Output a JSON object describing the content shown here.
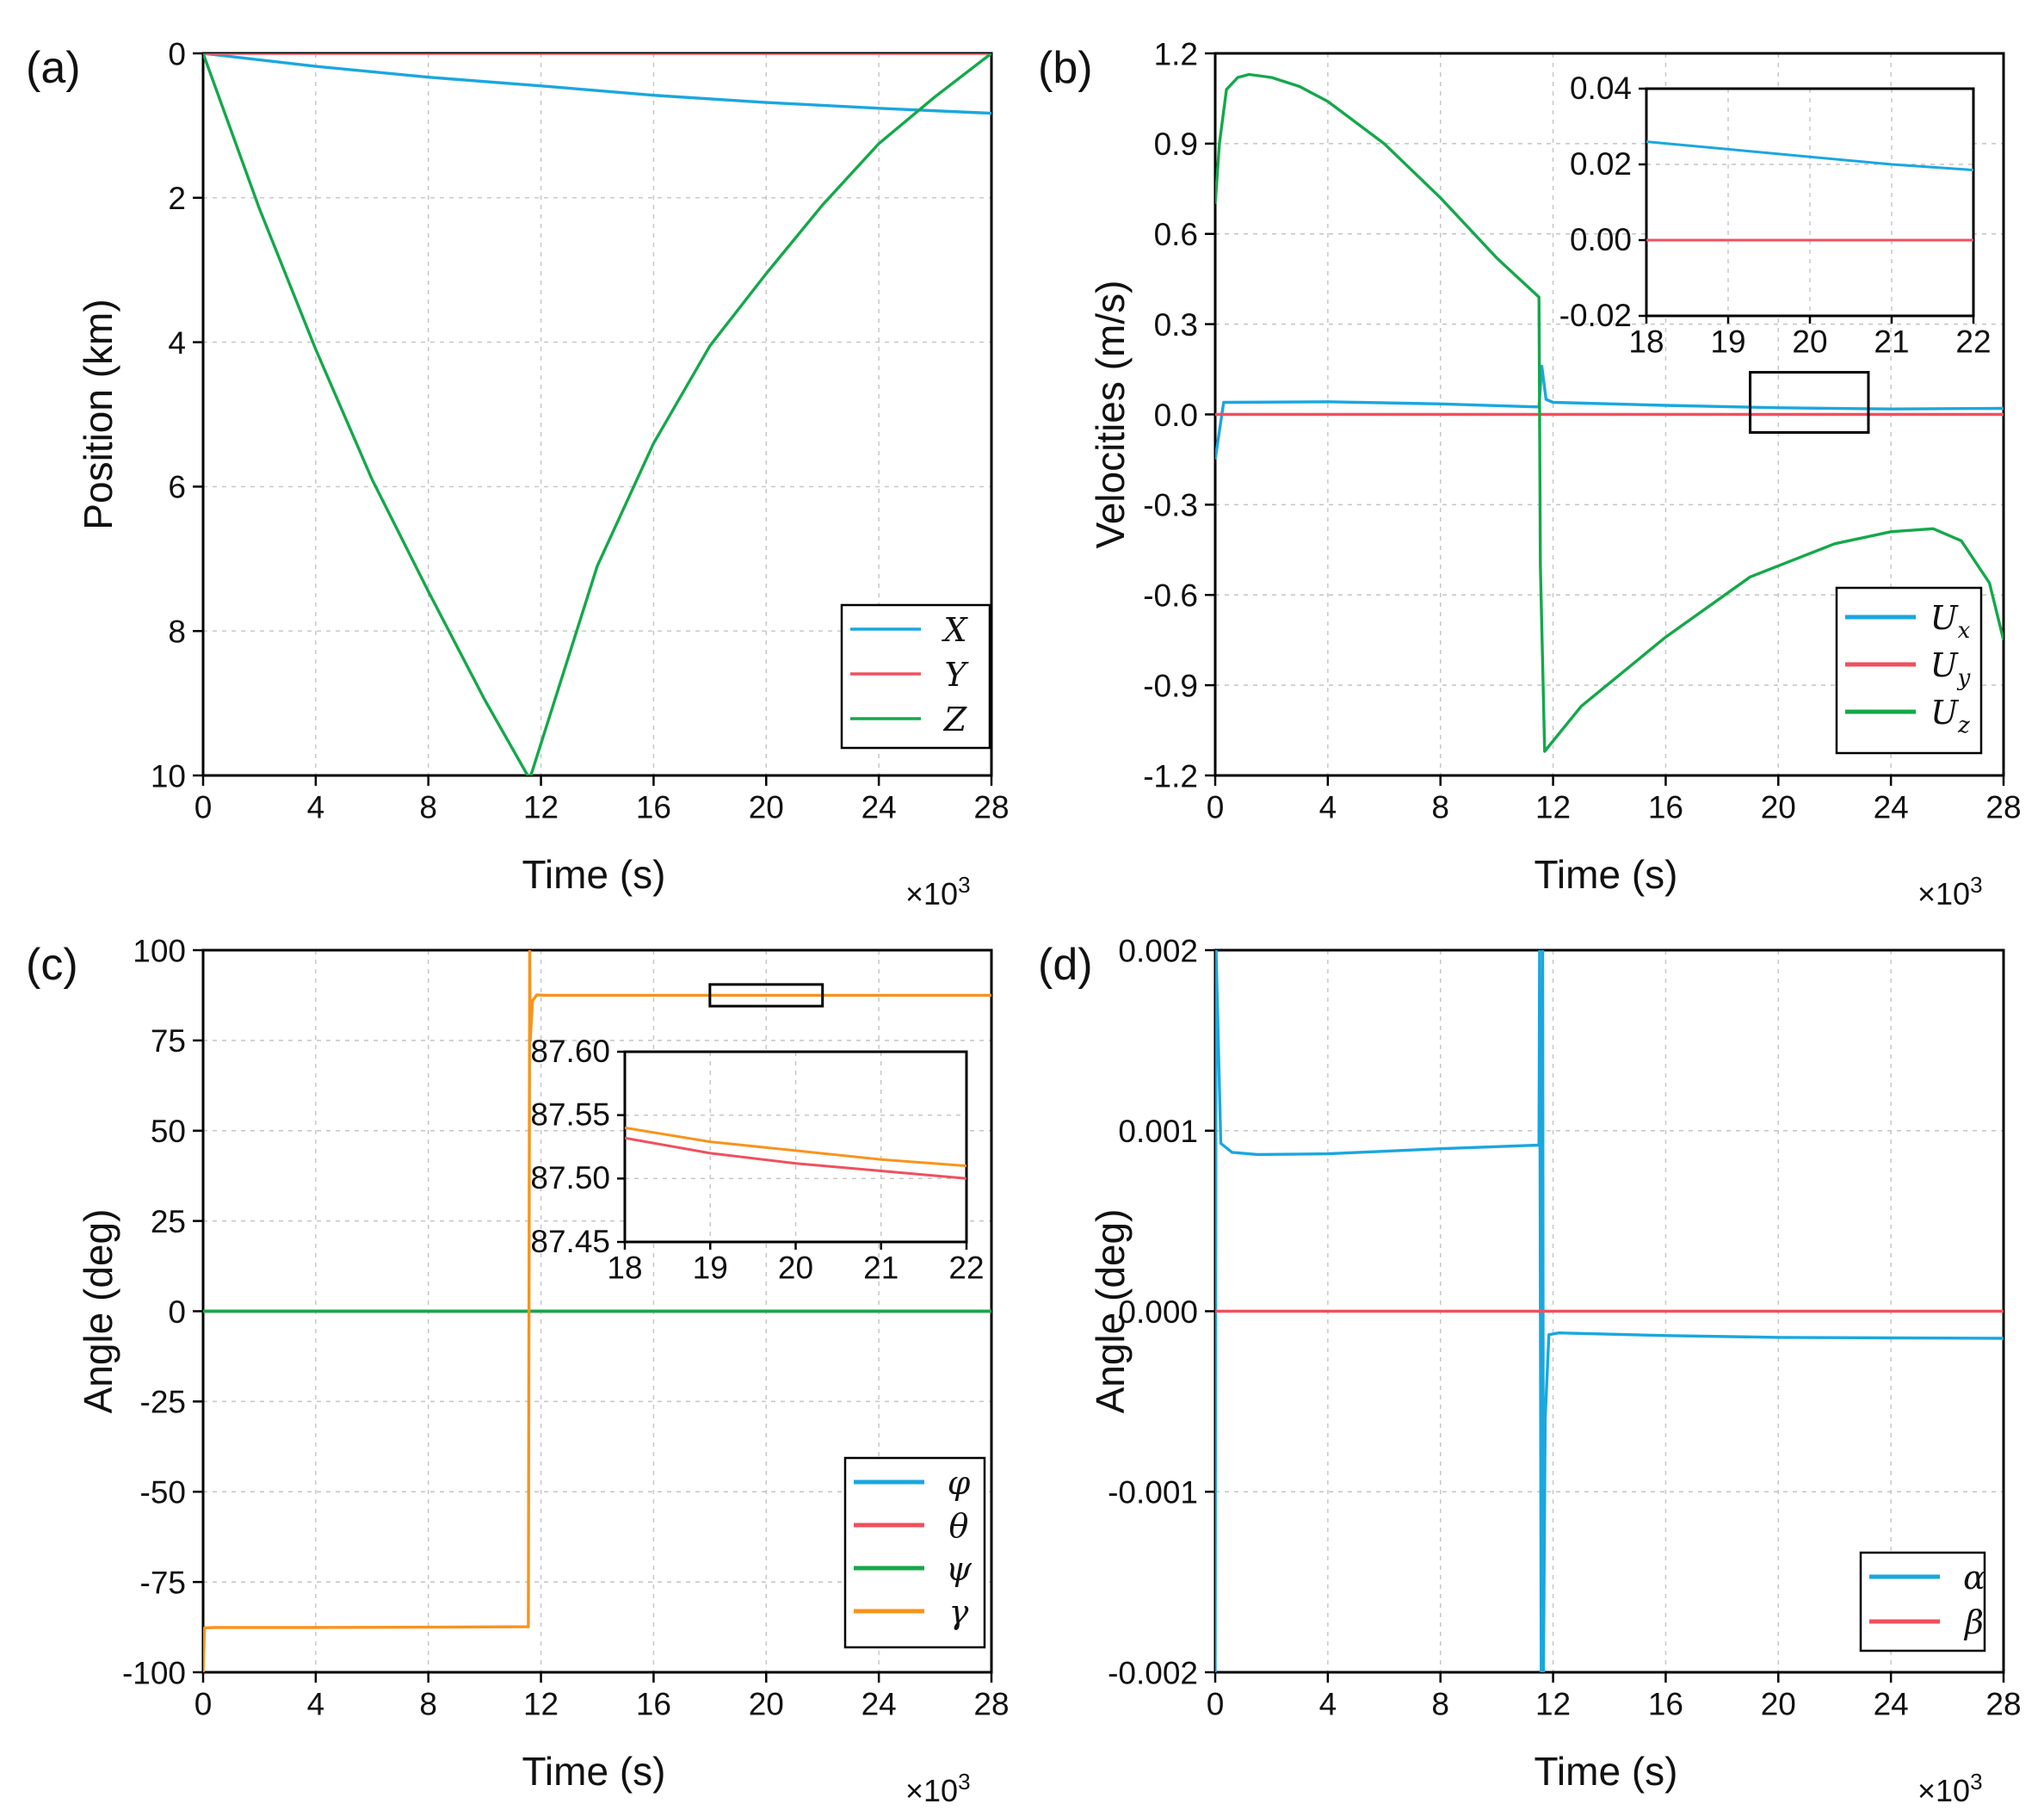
{
  "chart_data": [
    {
      "type": "line",
      "panel_label": "(a)",
      "xlabel": "Time (s)",
      "x_multiplier": "×10",
      "x_multiplier_exp": "3",
      "ylabel": "Position (km)",
      "xlim": [
        0,
        28
      ],
      "ylim": [
        0,
        10
      ],
      "y_inverted": true,
      "xticks": [
        "0",
        "4",
        "8",
        "12",
        "16",
        "20",
        "24",
        "28"
      ],
      "yticks": [
        "0",
        "2",
        "4",
        "6",
        "8",
        "10"
      ],
      "legend_position": "bottom-right",
      "series": [
        {
          "name": "X",
          "color": "#1aa7df",
          "x": [
            0,
            4,
            8,
            12,
            16,
            20,
            24,
            28
          ],
          "values": [
            0,
            0.18,
            0.33,
            0.45,
            0.58,
            0.68,
            0.76,
            0.83
          ]
        },
        {
          "name": "Y",
          "color": "#f0505e",
          "x": [
            0,
            28
          ],
          "values": [
            0,
            0
          ]
        },
        {
          "name": "Z",
          "color": "#14a84a",
          "x": [
            0,
            2,
            4,
            6,
            8,
            10,
            11.6,
            14,
            16,
            18,
            20,
            22,
            24,
            26,
            28
          ],
          "values": [
            0,
            2.15,
            4.1,
            5.9,
            7.45,
            8.95,
            10.05,
            7.1,
            5.4,
            4.05,
            3.05,
            2.1,
            1.25,
            0.6,
            0
          ]
        }
      ]
    },
    {
      "type": "line",
      "panel_label": "(b)",
      "xlabel": "Time (s)",
      "x_multiplier": "×10",
      "x_multiplier_exp": "3",
      "ylabel": "Velocities (m/s)",
      "xlim": [
        0,
        28
      ],
      "ylim": [
        -1.2,
        1.2
      ],
      "xticks": [
        "0",
        "4",
        "8",
        "12",
        "16",
        "20",
        "24",
        "28"
      ],
      "yticks": [
        "1.2",
        "0.9",
        "0.6",
        "0.3",
        "0.0",
        "-0.3",
        "-0.6",
        "-0.9",
        "-1.2"
      ],
      "legend_position": "bottom-right",
      "series": [
        {
          "name": "U",
          "sub": "x",
          "color": "#1aa7df",
          "x": [
            0,
            0.3,
            4,
            8,
            11.5,
            11.6,
            11.75,
            12,
            16,
            20,
            24,
            28
          ],
          "values": [
            -0.15,
            0.04,
            0.042,
            0.035,
            0.025,
            0.16,
            0.05,
            0.04,
            0.03,
            0.022,
            0.018,
            0.02
          ]
        },
        {
          "name": "U",
          "sub": "y",
          "color": "#f0505e",
          "x": [
            0,
            28
          ],
          "values": [
            0,
            0
          ]
        },
        {
          "name": "U",
          "sub": "z",
          "color": "#14a84a",
          "x": [
            0,
            0.15,
            0.4,
            0.8,
            1.2,
            2,
            3,
            4,
            6,
            8,
            10,
            11.5,
            11.55,
            11.7,
            13,
            16,
            19,
            22,
            24,
            25.5,
            26.5,
            27.5,
            28
          ],
          "values": [
            0.7,
            0.9,
            1.08,
            1.12,
            1.13,
            1.12,
            1.09,
            1.04,
            0.9,
            0.72,
            0.52,
            0.39,
            -0.5,
            -1.12,
            -0.97,
            -0.74,
            -0.54,
            -0.43,
            -0.39,
            -0.38,
            -0.42,
            -0.56,
            -0.75
          ]
        }
      ],
      "zoom_box": {
        "x": [
          19,
          23.2
        ],
        "y": [
          -0.06,
          0.14
        ]
      },
      "inset": {
        "xlim": [
          18,
          22
        ],
        "ylim": [
          -0.02,
          0.04
        ],
        "xticks": [
          "18",
          "19",
          "20",
          "21",
          "22"
        ],
        "yticks": [
          "0.04",
          "0.02",
          "0.00",
          "-0.02"
        ],
        "series": [
          {
            "name": "U_x",
            "color": "#1aa7df",
            "x": [
              18,
              19,
              20,
              21,
              22
            ],
            "values": [
              0.026,
              0.024,
              0.022,
              0.02,
              0.0185
            ]
          },
          {
            "name": "U_y",
            "color": "#f0505e",
            "x": [
              18,
              22
            ],
            "values": [
              0,
              0
            ]
          }
        ]
      }
    },
    {
      "type": "line",
      "panel_label": "(c)",
      "xlabel": "Time (s)",
      "x_multiplier": "×10",
      "x_multiplier_exp": "3",
      "ylabel": "Angle (deg)",
      "xlim": [
        0,
        28
      ],
      "ylim": [
        -100,
        100
      ],
      "xticks": [
        "0",
        "4",
        "8",
        "12",
        "16",
        "20",
        "24",
        "28"
      ],
      "yticks": [
        "100",
        "75",
        "50",
        "25",
        "0",
        "-25",
        "-50",
        "-75",
        "-100"
      ],
      "legend_position": "bottom-right",
      "series": [
        {
          "name": "φ",
          "color": "#1aa7df",
          "x": [
            0,
            28
          ],
          "values": [
            0,
            0
          ]
        },
        {
          "name": "θ",
          "color": "#f0505e",
          "x": [
            0,
            28
          ],
          "values": [
            0,
            0
          ]
        },
        {
          "name": "ψ",
          "color": "#14a84a",
          "x": [
            0,
            28
          ],
          "values": [
            0,
            0
          ]
        },
        {
          "name": "γ",
          "color": "#f7941d",
          "x": [
            0,
            0.05,
            0.4,
            4,
            8,
            11.55,
            11.6,
            11.62,
            11.7,
            11.85,
            12.2,
            28
          ],
          "values": [
            -100,
            -87.7,
            -87.6,
            -87.6,
            -87.5,
            -87.4,
            100,
            75,
            86,
            87.6,
            87.5,
            87.5
          ]
        }
      ],
      "zoom_box": {
        "x": [
          18,
          22
        ],
        "y": [
          84.5,
          90.5
        ]
      },
      "inset": {
        "xlim": [
          18,
          22
        ],
        "ylim": [
          87.45,
          87.6
        ],
        "xticks": [
          "18",
          "19",
          "20",
          "21",
          "22"
        ],
        "yticks": [
          "87.60",
          "87.55",
          "87.50",
          "87.45"
        ],
        "series": [
          {
            "name": "θ",
            "color": "#f0505e",
            "x": [
              18,
              19,
              20,
              21,
              22
            ],
            "values": [
              87.532,
              87.52,
              87.512,
              87.506,
              87.5
            ]
          },
          {
            "name": "γ",
            "color": "#f7941d",
            "x": [
              18,
              19,
              20,
              21,
              22
            ],
            "values": [
              87.54,
              87.529,
              87.522,
              87.515,
              87.51
            ]
          }
        ]
      }
    },
    {
      "type": "line",
      "panel_label": "(d)",
      "xlabel": "Time (s)",
      "x_multiplier": "×10",
      "x_multiplier_exp": "3",
      "ylabel": "Angle (deg)",
      "xlim": [
        0,
        28
      ],
      "ylim": [
        -0.002,
        0.002
      ],
      "xticks": [
        "0",
        "4",
        "8",
        "12",
        "16",
        "20",
        "24",
        "28"
      ],
      "yticks": [
        "0.002",
        "0.001",
        "0.000",
        "-0.001",
        "-0.002"
      ],
      "legend_position": "bottom-right",
      "series": [
        {
          "name": "α",
          "color": "#1aa7df",
          "x": [
            0,
            0.03,
            0.2,
            0.6,
            1.5,
            4,
            8,
            11.5,
            11.52,
            11.58,
            11.63,
            11.66,
            11.72,
            11.85,
            12.2,
            16,
            20,
            24,
            28
          ],
          "values": [
            -0.002,
            0.002,
            0.00093,
            0.00088,
            0.000868,
            0.000872,
            0.0009,
            0.00092,
            0.002,
            -0.002,
            0.002,
            -0.002,
            -0.0006,
            -0.00013,
            -0.00012,
            -0.000135,
            -0.000145,
            -0.000148,
            -0.00015
          ]
        },
        {
          "name": "β",
          "color": "#f0505e",
          "x": [
            0,
            28
          ],
          "values": [
            0,
            0
          ]
        }
      ]
    }
  ]
}
